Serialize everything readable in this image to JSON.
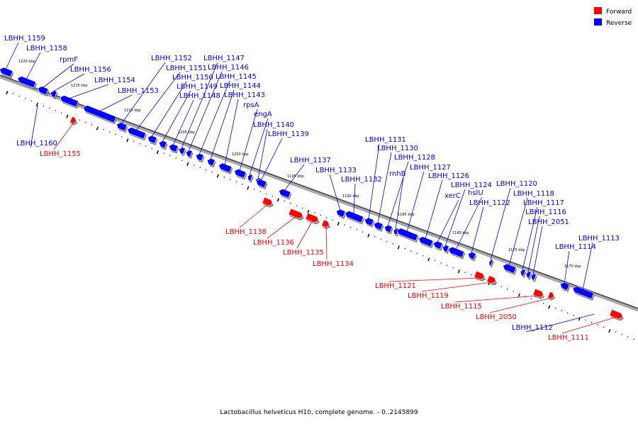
{
  "legend": {
    "forward": {
      "label": "Forward",
      "color": "#ff0000"
    },
    "reverse": {
      "label": "Reverse",
      "color": "#0000ff"
    }
  },
  "caption": "Lactobacillus helveticus H10, complete genome. - 0..2145899",
  "kbp_labels": [
    "1220 kbp",
    "1215 kbp",
    "1210 kbp",
    "1205 kbp",
    "1200 kbp",
    "1195 kbp",
    "1190 kbp",
    "1185 kbp",
    "1180 kbp",
    "1175 kbp",
    "1170 kbp"
  ],
  "genes": [
    {
      "name": "LBHH_1159",
      "strand": "reverse"
    },
    {
      "name": "LBHH_1158",
      "strand": "reverse"
    },
    {
      "name": "rpmF",
      "strand": "reverse"
    },
    {
      "name": "LBHH_1156",
      "strand": "reverse"
    },
    {
      "name": "LBHH_1154",
      "strand": "reverse"
    },
    {
      "name": "LBHH_1153",
      "strand": "reverse"
    },
    {
      "name": "LBHH_1152",
      "strand": "reverse"
    },
    {
      "name": "LBHH_1151",
      "strand": "reverse"
    },
    {
      "name": "LBHH_1150",
      "strand": "reverse"
    },
    {
      "name": "LBHH_1149",
      "strand": "reverse"
    },
    {
      "name": "LBHH_1148",
      "strand": "reverse"
    },
    {
      "name": "LBHH_1147",
      "strand": "reverse"
    },
    {
      "name": "LBHH_1146",
      "strand": "reverse"
    },
    {
      "name": "LBHH_1145",
      "strand": "reverse"
    },
    {
      "name": "LBHH_1144",
      "strand": "reverse"
    },
    {
      "name": "LBHH_1143",
      "strand": "reverse"
    },
    {
      "name": "rpsA",
      "strand": "reverse"
    },
    {
      "name": "engA",
      "strand": "reverse"
    },
    {
      "name": "LBHH_1140",
      "strand": "reverse"
    },
    {
      "name": "LBHH_1139",
      "strand": "reverse"
    },
    {
      "name": "LBHH_1160",
      "strand": "reverse"
    },
    {
      "name": "LBHH_1155",
      "strand": "forward"
    },
    {
      "name": "LBHH_1137",
      "strand": "reverse"
    },
    {
      "name": "LBHH_1133",
      "strand": "reverse"
    },
    {
      "name": "LBHH_1132",
      "strand": "reverse"
    },
    {
      "name": "LBHH_1131",
      "strand": "reverse"
    },
    {
      "name": "LBHH_1130",
      "strand": "reverse"
    },
    {
      "name": "LBHH_1128",
      "strand": "reverse"
    },
    {
      "name": "rnhB",
      "strand": "reverse"
    },
    {
      "name": "LBHH_1127",
      "strand": "reverse"
    },
    {
      "name": "LBHH_1126",
      "strand": "reverse"
    },
    {
      "name": "xerC",
      "strand": "reverse"
    },
    {
      "name": "LBHH_1124",
      "strand": "reverse"
    },
    {
      "name": "hslU",
      "strand": "reverse"
    },
    {
      "name": "LBHH_1122",
      "strand": "reverse"
    },
    {
      "name": "LBHH_1120",
      "strand": "reverse"
    },
    {
      "name": "LBHH_1118",
      "strand": "reverse"
    },
    {
      "name": "LBHH_1117",
      "strand": "reverse"
    },
    {
      "name": "LBHH_1116",
      "strand": "reverse"
    },
    {
      "name": "LBHH_2051",
      "strand": "reverse"
    },
    {
      "name": "LBHH_1113",
      "strand": "reverse"
    },
    {
      "name": "LBHH_1114",
      "strand": "reverse"
    },
    {
      "name": "LBHH_1138",
      "strand": "forward"
    },
    {
      "name": "LBHH_1136",
      "strand": "forward"
    },
    {
      "name": "LBHH_1135",
      "strand": "forward"
    },
    {
      "name": "LBHH_1134",
      "strand": "forward"
    },
    {
      "name": "LBHH_1121",
      "strand": "forward"
    },
    {
      "name": "LBHH_1119",
      "strand": "forward"
    },
    {
      "name": "LBHH_1115",
      "strand": "forward"
    },
    {
      "name": "LBHH_2050",
      "strand": "forward"
    },
    {
      "name": "LBHH_1112",
      "strand": "reverse"
    },
    {
      "name": "LBHH_1111",
      "strand": "forward"
    }
  ]
}
